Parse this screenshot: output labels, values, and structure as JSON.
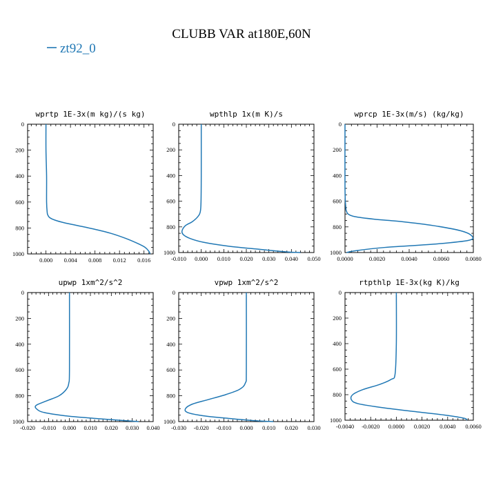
{
  "title": "CLUBB VAR at180E,60N",
  "legend": {
    "label": "zt92_0",
    "color": "#1f77b4",
    "placement": "top-left"
  },
  "chart_data": [
    {
      "type": "line",
      "title": "wprtp  1E-3x(m kg)/(s kg)",
      "xlim": [
        -0.003,
        0.0175
      ],
      "ylim": [
        1000,
        0
      ],
      "xticks": [
        0.0,
        0.004,
        0.008,
        0.012,
        0.016
      ],
      "xtick_labels": [
        "0.000",
        "0.004",
        "0.008",
        "0.012",
        "0.016"
      ],
      "yticks": [
        0,
        200,
        400,
        600,
        800,
        1000
      ],
      "ytick_labels": [
        "0",
        "200",
        "400",
        "600",
        "800",
        "1000"
      ],
      "series": [
        {
          "name": "zt92_0",
          "x": [
            0.0,
            0.0,
            0.0001,
            0.0001,
            0.0002,
            0.0003,
            0.0006,
            0.0015,
            0.003,
            0.005,
            0.0075,
            0.0105,
            0.013,
            0.015,
            0.0162,
            0.0168,
            0.017
          ],
          "y": [
            0,
            200,
            400,
            600,
            680,
            700,
            720,
            740,
            760,
            780,
            805,
            840,
            880,
            920,
            950,
            980,
            1000
          ]
        }
      ]
    },
    {
      "type": "line",
      "title": "wpthlp  1x(m K)/s",
      "xlim": [
        -0.01,
        0.05
      ],
      "ylim": [
        1000,
        0
      ],
      "xticks": [
        -0.01,
        0.0,
        0.01,
        0.02,
        0.03,
        0.04,
        0.05
      ],
      "xtick_labels": [
        "-0.010",
        "0.000",
        "0.010",
        "0.020",
        "0.030",
        "0.040",
        "0.050"
      ],
      "yticks": [
        0,
        200,
        400,
        600,
        800,
        1000
      ],
      "ytick_labels": [
        "0",
        "200",
        "400",
        "600",
        "800",
        "1000"
      ],
      "series": [
        {
          "name": "zt92_0",
          "x": [
            0.0,
            0.0,
            -0.0001,
            -0.0004,
            -0.0015,
            -0.004,
            -0.007,
            -0.0085,
            -0.008,
            -0.005,
            0.001,
            0.012,
            0.026,
            0.038,
            0.044
          ],
          "y": [
            0,
            400,
            600,
            680,
            720,
            760,
            790,
            830,
            860,
            890,
            920,
            950,
            975,
            995,
            1000
          ]
        }
      ]
    },
    {
      "type": "line",
      "title": "wprcp  1E-3x(m/s) (kg/kg)",
      "xlim": [
        0.0,
        0.008
      ],
      "ylim": [
        1000,
        0
      ],
      "xticks": [
        0.0,
        0.002,
        0.004,
        0.006,
        0.008
      ],
      "xtick_labels": [
        "0.0000",
        "0.0020",
        "0.0040",
        "0.0060",
        "0.0080"
      ],
      "yticks": [
        0,
        200,
        400,
        600,
        800,
        1000
      ],
      "ytick_labels": [
        "0",
        "200",
        "400",
        "600",
        "800",
        "1000"
      ],
      "series": [
        {
          "name": "zt92_0",
          "x": [
            0.0,
            0.0,
            5e-05,
            0.0001,
            0.0002,
            0.0006,
            0.0018,
            0.0036,
            0.0055,
            0.0072,
            0.0079,
            0.0077,
            0.0055,
            0.0025,
            0.0007,
            0.0001
          ],
          "y": [
            0,
            500,
            650,
            680,
            700,
            720,
            740,
            760,
            790,
            830,
            870,
            905,
            935,
            960,
            985,
            1000
          ]
        }
      ]
    },
    {
      "type": "line",
      "title": "upwp  1xm^2/s^2",
      "xlim": [
        -0.02,
        0.04
      ],
      "ylim": [
        1000,
        0
      ],
      "xticks": [
        -0.02,
        -0.01,
        0.0,
        0.01,
        0.02,
        0.03,
        0.04
      ],
      "xtick_labels": [
        "-0.020",
        "-0.010",
        "0.000",
        "0.010",
        "0.020",
        "0.030",
        "0.040"
      ],
      "yticks": [
        0,
        200,
        400,
        600,
        800,
        1000
      ],
      "ytick_labels": [
        "0",
        "200",
        "400",
        "600",
        "800",
        "1000"
      ],
      "series": [
        {
          "name": "zt92_0",
          "x": [
            0.0,
            0.0,
            -0.0003,
            -0.0015,
            -0.005,
            -0.011,
            -0.016,
            -0.0155,
            -0.012,
            -0.002,
            0.012,
            0.026,
            0.033
          ],
          "y": [
            0,
            600,
            700,
            750,
            800,
            840,
            875,
            905,
            930,
            955,
            975,
            992,
            1000
          ]
        }
      ]
    },
    {
      "type": "line",
      "title": "vpwp  1xm^2/s^2",
      "xlim": [
        -0.03,
        0.03
      ],
      "ylim": [
        1000,
        0
      ],
      "xticks": [
        -0.03,
        -0.02,
        -0.01,
        0.0,
        0.01,
        0.02,
        0.03
      ],
      "xtick_labels": [
        "-0.030",
        "-0.020",
        "-0.010",
        "0.000",
        "0.010",
        "0.020",
        "0.030"
      ],
      "yticks": [
        0,
        200,
        400,
        600,
        800,
        1000
      ],
      "ytick_labels": [
        "0",
        "200",
        "400",
        "600",
        "800",
        "1000"
      ],
      "series": [
        {
          "name": "zt92_0",
          "x": [
            0.0,
            0.0,
            -0.0004,
            -0.003,
            -0.009,
            -0.017,
            -0.024,
            -0.027,
            -0.026,
            -0.019,
            -0.008,
            0.004,
            0.012
          ],
          "y": [
            0,
            600,
            700,
            750,
            790,
            830,
            865,
            900,
            930,
            955,
            975,
            993,
            1000
          ]
        }
      ]
    },
    {
      "type": "line",
      "title": "rtpthlp  1E-3x(kg K)/kg",
      "xlim": [
        -0.004,
        0.006
      ],
      "ylim": [
        1000,
        0
      ],
      "xticks": [
        -0.004,
        -0.002,
        0.0,
        0.002,
        0.004,
        0.006
      ],
      "xtick_labels": [
        "-0.0040",
        "-0.0020",
        "0.0000",
        "0.0020",
        "0.0040",
        "0.0060"
      ],
      "yticks": [
        0,
        200,
        400,
        600,
        800,
        1000
      ],
      "ytick_labels": [
        "0",
        "200",
        "400",
        "600",
        "800",
        "1000"
      ],
      "series": [
        {
          "name": "zt92_0",
          "x": [
            0.0,
            0.0,
            -0.0001,
            -0.0004,
            -0.0013,
            -0.0026,
            -0.0034,
            -0.0035,
            -0.003,
            -0.0012,
            0.0012,
            0.0038,
            0.0053,
            0.0055
          ],
          "y": [
            0,
            400,
            640,
            680,
            720,
            760,
            800,
            840,
            870,
            900,
            930,
            960,
            985,
            1000
          ]
        }
      ]
    }
  ]
}
